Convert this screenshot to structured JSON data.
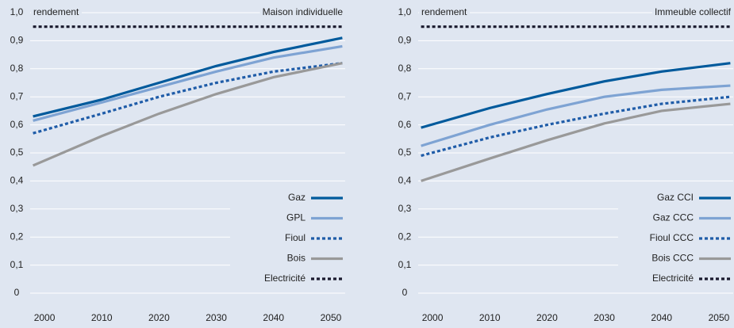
{
  "chart_data": [
    {
      "type": "line",
      "title": "Maison individuelle",
      "ylabel": "rendement",
      "x": [
        1998,
        2010,
        2020,
        2030,
        2040,
        2052
      ],
      "xlim": [
        1997.5,
        2052.5
      ],
      "xticks": [
        2000,
        2010,
        2020,
        2030,
        2040,
        2050
      ],
      "ylim": [
        0,
        1
      ],
      "yticks": [
        0,
        {
          "value": 0.1,
          "label": "0,1"
        },
        {
          "value": 0.2,
          "label": "0,2"
        },
        {
          "value": 0.3,
          "label": "0,3"
        },
        {
          "value": 0.4,
          "label": "0,4"
        },
        {
          "value": 0.5,
          "label": "0,5"
        },
        {
          "value": 0.6,
          "label": "0,6"
        },
        {
          "value": 0.7,
          "label": "0,7"
        },
        {
          "value": 0.8,
          "label": "0,8"
        },
        {
          "value": 0.9,
          "label": "0,9"
        },
        {
          "value": 1,
          "label": "1,0"
        }
      ],
      "grid": true,
      "legend": "lower right",
      "series": [
        {
          "name": "Gaz",
          "color": "#005a9c",
          "dashed": false,
          "values": [
            0.63,
            0.69,
            0.75,
            0.81,
            0.86,
            0.91
          ]
        },
        {
          "name": "GPL",
          "color": "#7ea3d3",
          "dashed": false,
          "values": [
            0.615,
            0.68,
            0.735,
            0.79,
            0.84,
            0.88
          ]
        },
        {
          "name": "Fioul",
          "color": "#1f5ca8",
          "dashed": true,
          "values": [
            0.57,
            0.64,
            0.7,
            0.75,
            0.79,
            0.82
          ]
        },
        {
          "name": "Bois",
          "color": "#999999",
          "dashed": false,
          "values": [
            0.455,
            0.56,
            0.64,
            0.71,
            0.77,
            0.82
          ]
        },
        {
          "name": "Electricité",
          "color": "#1a1a2e",
          "dashed": true,
          "values": [
            0.95,
            0.95,
            0.95,
            0.95,
            0.95,
            0.95
          ]
        }
      ]
    },
    {
      "type": "line",
      "title": "Immeuble collectif",
      "ylabel": "rendement",
      "x": [
        1998,
        2010,
        2020,
        2030,
        2040,
        2052
      ],
      "xlim": [
        1997.5,
        2052.5
      ],
      "xticks": [
        2000,
        2010,
        2020,
        2030,
        2040,
        2050
      ],
      "ylim": [
        0,
        1
      ],
      "yticks": [
        0,
        {
          "value": 0.1,
          "label": "0,1"
        },
        {
          "value": 0.2,
          "label": "0,2"
        },
        {
          "value": 0.3,
          "label": "0,3"
        },
        {
          "value": 0.4,
          "label": "0,4"
        },
        {
          "value": 0.5,
          "label": "0,5"
        },
        {
          "value": 0.6,
          "label": "0,6"
        },
        {
          "value": 0.7,
          "label": "0,7"
        },
        {
          "value": 0.8,
          "label": "0,8"
        },
        {
          "value": 0.9,
          "label": "0,9"
        },
        {
          "value": 1,
          "label": "1,0"
        }
      ],
      "grid": true,
      "legend": "lower right",
      "series": [
        {
          "name": "Gaz CCI",
          "color": "#005a9c",
          "dashed": false,
          "values": [
            0.59,
            0.66,
            0.71,
            0.755,
            0.79,
            0.82
          ]
        },
        {
          "name": "Gaz CCC",
          "color": "#7ea3d3",
          "dashed": false,
          "values": [
            0.525,
            0.6,
            0.655,
            0.7,
            0.725,
            0.74
          ]
        },
        {
          "name": "Fioul CCC",
          "color": "#1f5ca8",
          "dashed": true,
          "values": [
            0.49,
            0.555,
            0.6,
            0.64,
            0.675,
            0.7
          ]
        },
        {
          "name": "Bois CCC",
          "color": "#999999",
          "dashed": false,
          "values": [
            0.4,
            0.48,
            0.545,
            0.605,
            0.65,
            0.675
          ]
        },
        {
          "name": "Electricité",
          "color": "#1a1a2e",
          "dashed": true,
          "values": [
            0.95,
            0.95,
            0.95,
            0.95,
            0.95,
            0.95
          ]
        }
      ]
    }
  ]
}
